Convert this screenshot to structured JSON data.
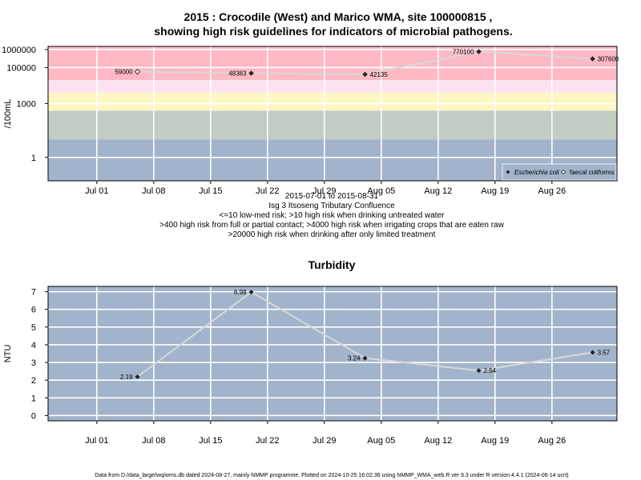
{
  "chart_data": [
    {
      "type": "line",
      "title": "2015 : Crocodile (West) and Marico WMA, site 100000815 ,",
      "subtitle": "showing high risk guidelines for indicators of microbial pathogens.",
      "ylabel": "/100mL",
      "y_scale": "log",
      "ylim": [
        0.05,
        1500000
      ],
      "xlim": [
        "2015-06-25",
        "2015-09-03"
      ],
      "x_ticks": [
        {
          "date": "2015-07-01",
          "label": "Jul 01"
        },
        {
          "date": "2015-07-08",
          "label": "Jul 08"
        },
        {
          "date": "2015-07-15",
          "label": "Jul 15"
        },
        {
          "date": "2015-07-22",
          "label": "Jul 22"
        },
        {
          "date": "2015-07-29",
          "label": "Jul 29"
        },
        {
          "date": "2015-08-05",
          "label": "Aug 05"
        },
        {
          "date": "2015-08-12",
          "label": "Aug 12"
        },
        {
          "date": "2015-08-19",
          "label": "Aug 19"
        },
        {
          "date": "2015-08-26",
          "label": "Aug 26"
        }
      ],
      "y_ticks": [
        {
          "value": 1,
          "label": "1"
        },
        {
          "value": 1000,
          "label": "1000"
        },
        {
          "value": 100000,
          "label": "100000"
        },
        {
          "value": 1000000,
          "label": "1000000"
        }
      ],
      "risk_bands": [
        {
          "from": 0.05,
          "to": 10,
          "color": "#a2b4cb"
        },
        {
          "from": 10,
          "to": 400,
          "color": "#c2cdc3"
        },
        {
          "from": 400,
          "to": 4000,
          "color": "#fff6c2"
        },
        {
          "from": 4000,
          "to": 20000,
          "color": "#fde3f1"
        },
        {
          "from": 20000,
          "to": 1500000,
          "color": "#ffb9c4"
        }
      ],
      "series": [
        {
          "name": "Escherichia coli",
          "marker": "filled-diamond",
          "points": [
            {
              "x": "2015-07-20",
              "y": 48383,
              "label": "48383"
            },
            {
              "x": "2015-08-03",
              "y": 42135,
              "label": "42135"
            },
            {
              "x": "2015-08-17",
              "y": 770100,
              "label": "770100"
            },
            {
              "x": "2015-08-31",
              "y": 307600,
              "label": "307600"
            }
          ]
        },
        {
          "name": "faecal coliforms",
          "marker": "open-diamond",
          "points": [
            {
              "x": "2015-07-06",
              "y": 59000,
              "label": "59000"
            }
          ]
        }
      ],
      "captions": [
        "2015-07-01 to 2015-08-31",
        "Isg 3 Itsoseng Tributary Confluence",
        "<=10 low-med risk; >10 high risk when drinking untreated water",
        ">400 high risk from full or partial contact; >4000 high risk when irrigating crops that are eaten raw",
        ">20000 high risk when drinking after only limited treatment"
      ],
      "legend_placement": "bottom-right",
      "grid": true
    },
    {
      "type": "line",
      "title": "Turbidity",
      "ylabel": "NTU",
      "ylim": [
        -0.3,
        7.3
      ],
      "xlim": [
        "2015-06-25",
        "2015-09-03"
      ],
      "y_ticks": [
        0,
        1,
        2,
        3,
        4,
        5,
        6,
        7
      ],
      "grid": true,
      "series": [
        {
          "points": [
            {
              "x": "2015-07-06",
              "y": 2.19,
              "label": "2.19"
            },
            {
              "x": "2015-07-20",
              "y": 6.98,
              "label": "6.98"
            },
            {
              "x": "2015-08-03",
              "y": 3.24,
              "label": "3.24"
            },
            {
              "x": "2015-08-17",
              "y": 2.54,
              "label": "2.54"
            },
            {
              "x": "2015-08-31",
              "y": 3.57,
              "label": "3.57"
            }
          ]
        }
      ]
    }
  ],
  "footer": "Data from D:/data_large/wq/wms.db dated 2024-08-27, mainly NMMP programme. Plotted on 2024-10-25 16:02:36 using NMMP_WMA_web.R ver 9.3 under R version 4.4.1 (2024-06-14 ucrt)"
}
